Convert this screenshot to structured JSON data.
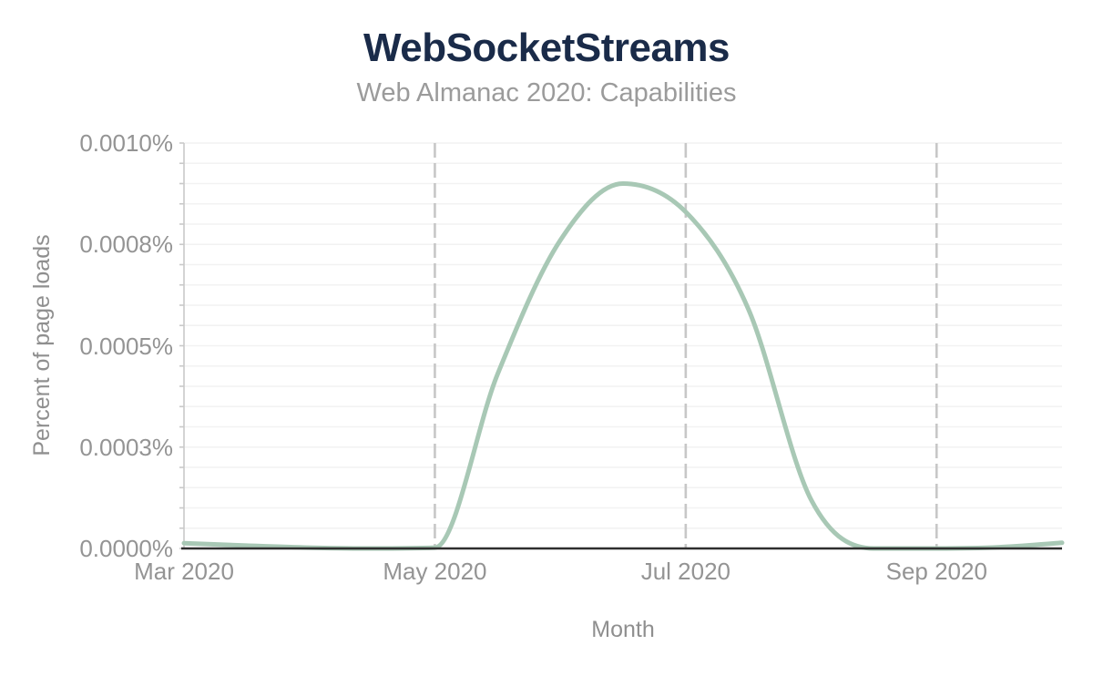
{
  "chart_data": {
    "type": "line",
    "title": "WebSocketStreams",
    "subtitle": "Web Almanac 2020: Capabilities",
    "xlabel": "Month",
    "ylabel": "Percent of page loads",
    "xlim_months_since_mar2020": [
      0,
      7
    ],
    "ylim": [
      0,
      0.001
    ],
    "y_unit": "percent of page loads",
    "legend": "none",
    "series": [
      {
        "name": "WebSocketStreams",
        "color": "#a8c8b5",
        "x_months_since_mar2020": [
          0,
          0.5,
          1,
          1.5,
          2,
          2.5,
          3,
          3.5,
          4,
          4.5,
          5,
          5.5,
          6,
          6.5,
          7
        ],
        "values": [
          1.3e-05,
          7e-06,
          2e-06,
          0,
          2e-06,
          0.00043,
          0.00076,
          0.0009,
          0.00083,
          0.00059,
          0.00012,
          0,
          0,
          3e-06,
          1.4e-05
        ]
      }
    ],
    "x_ticks": [
      {
        "m": 0,
        "label": "Mar 2020"
      },
      {
        "m": 2,
        "label": "May 2020"
      },
      {
        "m": 4,
        "label": "Jul 2020"
      },
      {
        "m": 6,
        "label": "Sep 2020"
      }
    ],
    "y_ticks": [
      {
        "value": 0,
        "label": "0.0000%"
      },
      {
        "value": 0.00025,
        "label": "0.0003%"
      },
      {
        "value": 0.0005,
        "label": "0.0005%"
      },
      {
        "value": 0.00075,
        "label": "0.0008%"
      },
      {
        "value": 0.001,
        "label": "0.0010%"
      }
    ],
    "grid": {
      "y_minor_step": 5e-05,
      "x_gridlines_at_months": [
        2,
        4,
        6
      ],
      "x_gridline_style": "dashed",
      "y_gridline_style": "solid-light"
    }
  },
  "colors": {
    "background": "#ffffff",
    "title": "#1a2b49",
    "subtitle": "#9b9b9b",
    "tick_label": "#949494",
    "axis_title": "#8f8f8f",
    "line": "#a8c8b5",
    "axis_line": "#2e2e2e",
    "grid_minor": "#f2f2f2",
    "grid_dashed": "#c7c7c7",
    "plot_border": "#c9c9c9"
  }
}
